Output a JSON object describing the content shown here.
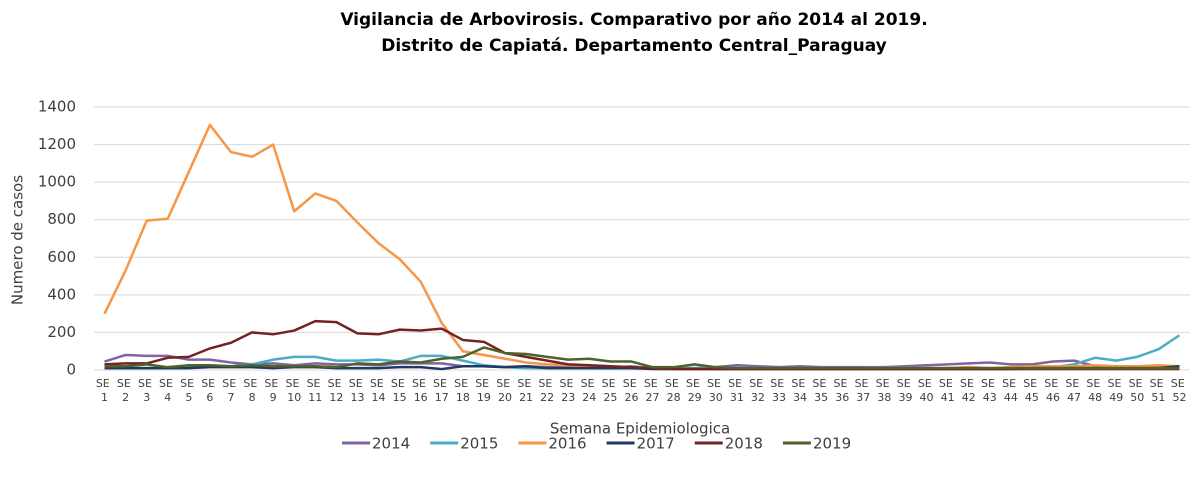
{
  "chart_data": {
    "type": "line",
    "title": [
      "Vigilancia de Arbovirosis. Comparativo por año 2014 al 2019.",
      "Distrito de Capiatá. Departamento Central_Paraguay"
    ],
    "x_label": "Semana Epidemiologica",
    "y_label": "Numero de casos",
    "categories": [
      "SE 1",
      "SE 2",
      "SE 3",
      "SE 4",
      "SE 5",
      "SE 6",
      "SE 7",
      "SE 8",
      "SE 9",
      "SE 10",
      "SE 11",
      "SE 12",
      "SE 13",
      "SE 14",
      "SE 15",
      "SE 16",
      "SE 17",
      "SE 18",
      "SE 19",
      "SE 20",
      "SE 21",
      "SE 22",
      "SE 23",
      "SE 24",
      "SE 25",
      "SE 26",
      "SE 27",
      "SE 28",
      "SE 29",
      "SE 30",
      "SE 31",
      "SE 32",
      "SE 33",
      "SE 34",
      "SE 35",
      "SE 36",
      "SE 37",
      "SE 38",
      "SE 39",
      "SE 40",
      "SE 41",
      "SE 42",
      "SE 43",
      "SE 44",
      "SE 45",
      "SE 46",
      "SE 47",
      "SE 48",
      "SE 49",
      "SE 50",
      "SE 51",
      "SE 52"
    ],
    "ylim": [
      0,
      1400
    ],
    "yticks": [
      0,
      200,
      400,
      600,
      800,
      1000,
      1200,
      1400
    ],
    "grid": true,
    "legend": "bottom",
    "series": [
      {
        "name": "2014",
        "color": "#8064a2",
        "values": [
          45,
          80,
          75,
          75,
          55,
          55,
          40,
          30,
          35,
          25,
          35,
          30,
          30,
          25,
          35,
          35,
          35,
          20,
          20,
          15,
          20,
          15,
          15,
          10,
          10,
          10,
          10,
          10,
          10,
          15,
          25,
          20,
          15,
          20,
          15,
          15,
          15,
          15,
          20,
          25,
          30,
          35,
          40,
          30,
          30,
          45,
          50,
          20,
          20,
          20,
          20,
          20
        ]
      },
      {
        "name": "2015",
        "color": "#4bacc6",
        "values": [
          10,
          10,
          10,
          10,
          15,
          20,
          20,
          30,
          55,
          70,
          70,
          50,
          50,
          55,
          45,
          75,
          75,
          50,
          25,
          15,
          10,
          10,
          10,
          10,
          10,
          20,
          10,
          10,
          10,
          15,
          10,
          10,
          10,
          10,
          10,
          10,
          10,
          10,
          10,
          10,
          10,
          15,
          10,
          10,
          10,
          15,
          30,
          65,
          50,
          70,
          110,
          185
        ]
      },
      {
        "name": "2016",
        "color": "#f79646",
        "values": [
          300,
          530,
          795,
          805,
          1055,
          1305,
          1160,
          1135,
          1200,
          845,
          940,
          900,
          785,
          675,
          590,
          470,
          250,
          100,
          80,
          60,
          40,
          30,
          25,
          20,
          15,
          10,
          10,
          5,
          5,
          5,
          5,
          5,
          5,
          5,
          5,
          5,
          10,
          10,
          10,
          10,
          10,
          15,
          10,
          15,
          20,
          20,
          20,
          25,
          20,
          20,
          25,
          20
        ]
      },
      {
        "name": "2017",
        "color": "#1f3864",
        "values": [
          10,
          10,
          10,
          10,
          10,
          15,
          15,
          15,
          10,
          15,
          15,
          10,
          10,
          10,
          15,
          15,
          5,
          20,
          20,
          15,
          20,
          10,
          10,
          10,
          10,
          10,
          5,
          5,
          5,
          5,
          5,
          5,
          5,
          5,
          5,
          5,
          5,
          5,
          5,
          5,
          5,
          5,
          5,
          5,
          10,
          10,
          10,
          10,
          10,
          10,
          10,
          20
        ]
      },
      {
        "name": "2018",
        "color": "#772222",
        "values": [
          30,
          35,
          35,
          65,
          70,
          115,
          145,
          200,
          190,
          210,
          260,
          255,
          195,
          190,
          215,
          210,
          220,
          160,
          150,
          90,
          70,
          50,
          30,
          25,
          20,
          15,
          10,
          5,
          5,
          5,
          5,
          5,
          5,
          5,
          5,
          5,
          5,
          5,
          5,
          5,
          5,
          5,
          5,
          5,
          5,
          5,
          5,
          5,
          5,
          5,
          5,
          5
        ]
      },
      {
        "name": "2019",
        "color": "#4f6228",
        "values": [
          20,
          20,
          30,
          15,
          25,
          25,
          20,
          25,
          20,
          20,
          20,
          15,
          35,
          30,
          45,
          40,
          60,
          70,
          120,
          90,
          85,
          70,
          55,
          60,
          45,
          45,
          15,
          15,
          30,
          15,
          10,
          10,
          10,
          10,
          10,
          10,
          10,
          10,
          10,
          10,
          10,
          10,
          10,
          10,
          10,
          10,
          10,
          10,
          10,
          10,
          10,
          10
        ]
      }
    ]
  }
}
